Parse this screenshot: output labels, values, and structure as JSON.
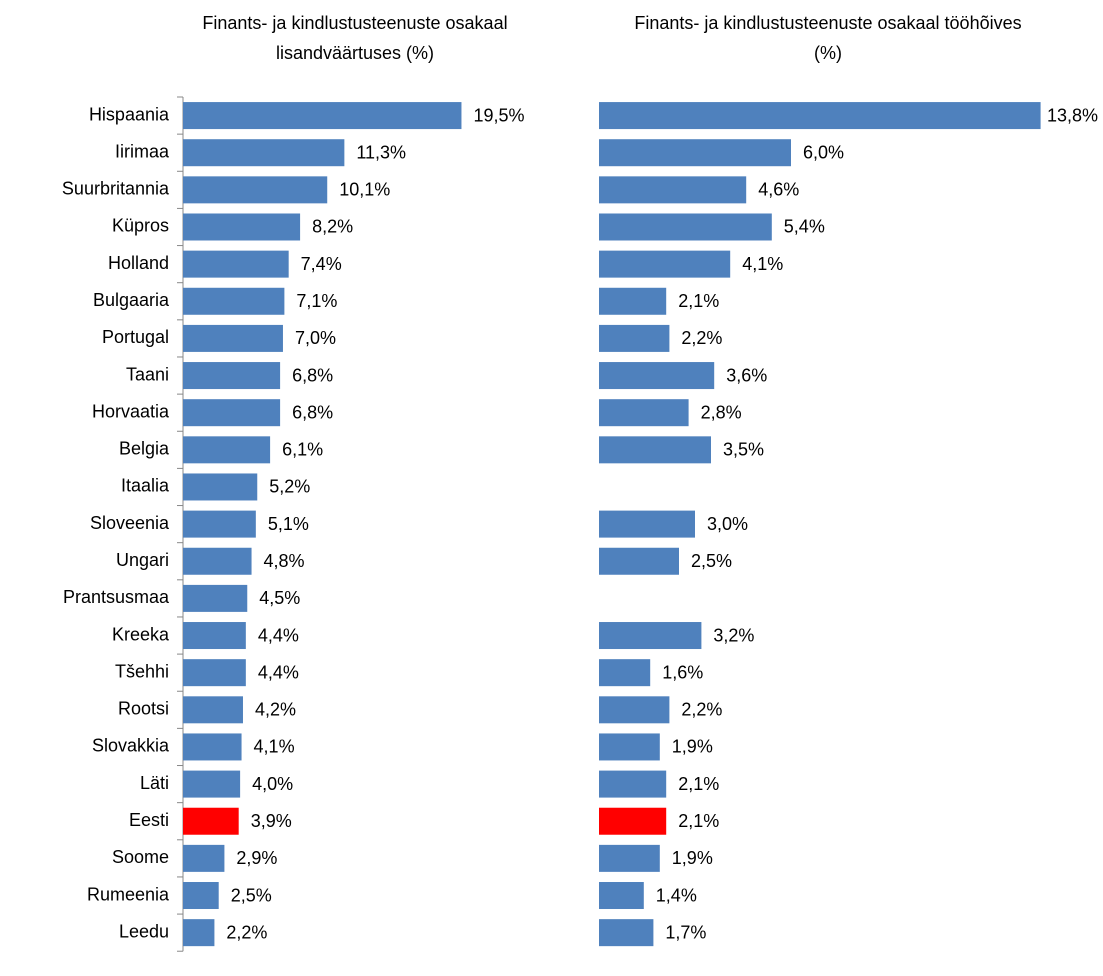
{
  "chart_data": [
    {
      "type": "bar",
      "orientation": "horizontal",
      "title": "Finants- ja kindlustusteenuste osakaal lisandväärtuses (%)",
      "categories": [
        "Hispaania",
        "Iirimaa",
        "Suurbritannia",
        "Küpros",
        "Holland",
        "Bulgaaria",
        "Portugal",
        "Taani",
        "Horvaatia",
        "Belgia",
        "Itaalia",
        "Sloveenia",
        "Ungari",
        "Prantsusmaa",
        "Kreeka",
        "Tšehhi",
        "Rootsi",
        "Slovakkia",
        "Läti",
        "Eesti",
        "Soome",
        "Rumeenia",
        "Leedu"
      ],
      "values": [
        19.5,
        11.3,
        10.1,
        8.2,
        7.4,
        7.1,
        7.0,
        6.8,
        6.8,
        6.1,
        5.2,
        5.1,
        4.8,
        4.5,
        4.4,
        4.4,
        4.2,
        4.1,
        4.0,
        3.9,
        2.9,
        2.5,
        2.2
      ],
      "value_labels": [
        "19,5%",
        "11,3%",
        "10,1%",
        "8,2%",
        "7,4%",
        "7,1%",
        "7,0%",
        "6,8%",
        "6,8%",
        "6,1%",
        "5,2%",
        "5,1%",
        "4,8%",
        "4,5%",
        "4,4%",
        "4,4%",
        "4,2%",
        "4,1%",
        "4,0%",
        "3,9%",
        "2,9%",
        "2,5%",
        "2,2%"
      ],
      "colors": [
        "#4f81bd",
        "#4f81bd",
        "#4f81bd",
        "#4f81bd",
        "#4f81bd",
        "#4f81bd",
        "#4f81bd",
        "#4f81bd",
        "#4f81bd",
        "#4f81bd",
        "#4f81bd",
        "#4f81bd",
        "#4f81bd",
        "#4f81bd",
        "#4f81bd",
        "#4f81bd",
        "#4f81bd",
        "#4f81bd",
        "#4f81bd",
        "#ff0000",
        "#4f81bd",
        "#4f81bd",
        "#4f81bd"
      ],
      "xlim": [
        0,
        25
      ]
    },
    {
      "type": "bar",
      "orientation": "horizontal",
      "title": "Finants- ja kindlustusteenuste osakaal tööhõives (%)",
      "values": [
        13.8,
        6.0,
        4.6,
        5.4,
        4.1,
        2.1,
        2.2,
        3.6,
        2.8,
        3.5,
        null,
        3.0,
        2.5,
        null,
        3.2,
        1.6,
        2.2,
        1.9,
        2.1,
        2.1,
        1.9,
        1.4,
        1.7
      ],
      "value_labels": [
        "13,8%",
        "6,0%",
        "4,6%",
        "5,4%",
        "4,1%",
        "2,1%",
        "2,2%",
        "3,6%",
        "2,8%",
        "3,5%",
        null,
        "3,0%",
        "2,5%",
        null,
        "3,2%",
        "1,6%",
        "2,2%",
        "1,9%",
        "2,1%",
        "2,1%",
        "1,9%",
        "1,4%",
        "1,7%"
      ],
      "colors": [
        "#4f81bd",
        "#4f81bd",
        "#4f81bd",
        "#4f81bd",
        "#4f81bd",
        "#4f81bd",
        "#4f81bd",
        "#4f81bd",
        "#4f81bd",
        "#4f81bd",
        "#4f81bd",
        "#4f81bd",
        "#4f81bd",
        "#4f81bd",
        "#4f81bd",
        "#4f81bd",
        "#4f81bd",
        "#4f81bd",
        "#4f81bd",
        "#ff0000",
        "#4f81bd",
        "#4f81bd",
        "#4f81bd"
      ],
      "xlim": [
        0,
        14
      ]
    }
  ]
}
